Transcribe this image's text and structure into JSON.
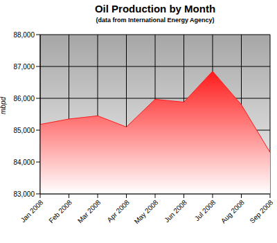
{
  "chart_data": {
    "type": "area",
    "title": "Oil Production by Month",
    "subtitle": "(data from International Energy Agency)",
    "y_label": "mbpd",
    "categories": [
      "Jan 2008",
      "Feb 2008",
      "Mar 2008",
      "Apr 2008",
      "May 2008",
      "Jun 2008",
      "Jul 2008",
      "Aug 2008",
      "Sep 2008"
    ],
    "values": [
      85180,
      85350,
      85450,
      85100,
      85970,
      85880,
      86850,
      85800,
      84300
    ],
    "color": "#ff1a1a",
    "ylim": [
      83000,
      88000
    ],
    "yticks": [
      {
        "value": 83000,
        "label": "83,000"
      },
      {
        "value": 84000,
        "label": "84,000"
      },
      {
        "value": 85000,
        "label": "85,000"
      },
      {
        "value": 86000,
        "label": "86,000"
      },
      {
        "value": 87000,
        "label": "87,000"
      },
      {
        "value": 88000,
        "label": "88,000"
      }
    ],
    "grid": true
  }
}
